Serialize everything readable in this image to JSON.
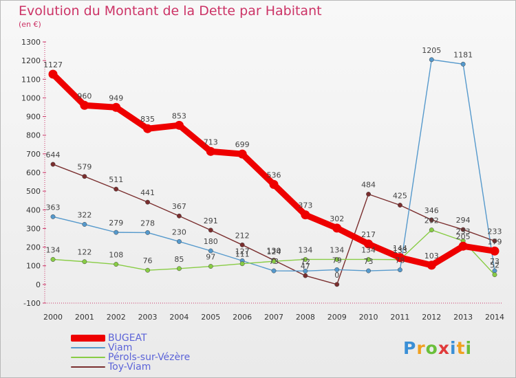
{
  "header": {
    "title": "Evolution du Montant de la Dette par Habitant",
    "subtitle": "(en €)"
  },
  "chart_data": {
    "type": "line",
    "title": "Evolution du Montant de la Dette par Habitant",
    "ylabel": "(en €)",
    "xlabel": "",
    "ylim": [
      -100,
      1300
    ],
    "yticks": [
      -100,
      0,
      100,
      200,
      300,
      400,
      500,
      600,
      700,
      800,
      900,
      1000,
      1100,
      1200,
      1300
    ],
    "categories": [
      "2000",
      "2001",
      "2002",
      "2003",
      "2004",
      "2005",
      "2006",
      "2007",
      "2008",
      "2009",
      "2010",
      "2011",
      "2012",
      "2013",
      "2014"
    ],
    "grid": false,
    "legend_position": "bottom-left",
    "series": [
      {
        "name": "BUGEAT",
        "color": "#ee0000",
        "values": [
          1127,
          960,
          949,
          835,
          853,
          713,
          699,
          536,
          373,
          302,
          217,
          144,
          103,
          205,
          179
        ]
      },
      {
        "name": "Viam",
        "color": "#5599cc",
        "values": [
          363,
          322,
          279,
          278,
          230,
          180,
          127,
          73,
          72,
          79,
          73,
          78,
          1205,
          1181,
          73
        ]
      },
      {
        "name": "Pérols-sur-Vézère",
        "color": "#88cc44",
        "values": [
          134,
          122,
          108,
          76,
          85,
          97,
          111,
          124,
          134,
          134,
          134,
          133,
          292,
          233,
          52
        ]
      },
      {
        "name": "Toy-Viam",
        "color": "#7a2e2e",
        "values": [
          644,
          579,
          511,
          441,
          367,
          291,
          212,
          130,
          47,
          0,
          484,
          425,
          346,
          294,
          233
        ]
      }
    ]
  },
  "legend": {
    "items": [
      {
        "label": "BUGEAT"
      },
      {
        "label": "Viam"
      },
      {
        "label": "Pérols-sur-Vézère"
      },
      {
        "label": "Toy-Viam"
      }
    ]
  },
  "brand": {
    "text": "Proxiti"
  }
}
